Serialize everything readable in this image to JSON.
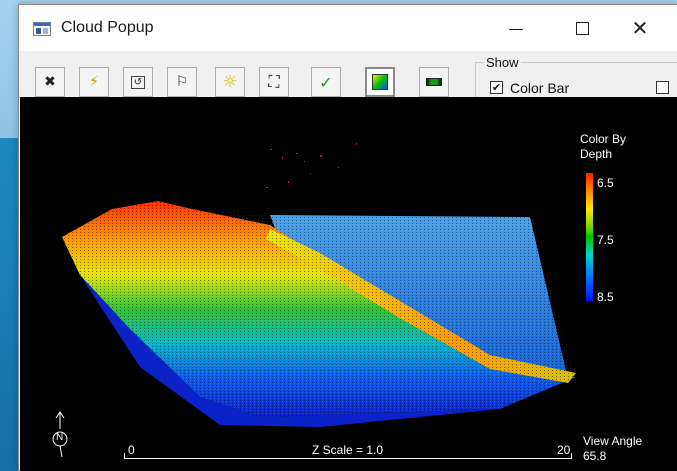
{
  "window": {
    "title": "Cloud Popup"
  },
  "titlebar_buttons": {
    "close_glyph": "✕"
  },
  "toolbar": {
    "buttons": [
      {
        "name": "tools-button",
        "icon": "tools-icon",
        "glyph": "✖"
      },
      {
        "name": "lightning-button",
        "icon": "lightning-icon",
        "glyph": "⚡"
      },
      {
        "name": "undo-view-button",
        "icon": "undo-icon",
        "glyph": "↺"
      },
      {
        "name": "flag-button",
        "icon": "flag-icon",
        "glyph": "⚐"
      },
      {
        "name": "sun-button",
        "icon": "sun-icon",
        "glyph": "☼"
      },
      {
        "name": "zoom-extents-button",
        "icon": "zoom-extents-icon",
        "glyph": "⛶"
      },
      {
        "name": "accept-button",
        "icon": "checkmark-icon",
        "glyph": "✓"
      },
      {
        "name": "color-map-button",
        "icon": "color-map-icon",
        "glyph": ""
      },
      {
        "name": "colorbar-button",
        "icon": "colorbar-icon",
        "glyph": ""
      }
    ],
    "show_group": {
      "legend": "Show",
      "color_bar_label": "Color Bar",
      "color_bar_checked": "✔",
      "second_checked": ""
    }
  },
  "viewport": {
    "color_by_line1": "Color By",
    "color_by_line2": "Depth",
    "colorbar_ticks": [
      "6.5",
      "7.5",
      "8.5"
    ],
    "scale_start": "0",
    "scale_label": "Z Scale = 1.0",
    "scale_end": "20",
    "view_angle_label": "View Angle",
    "view_angle_value": "65.8",
    "north_label": "N"
  },
  "colors": {
    "window_bg": "#f0f0f0",
    "viewport_bg": "#000000",
    "desktop": "#1c7fb4"
  }
}
